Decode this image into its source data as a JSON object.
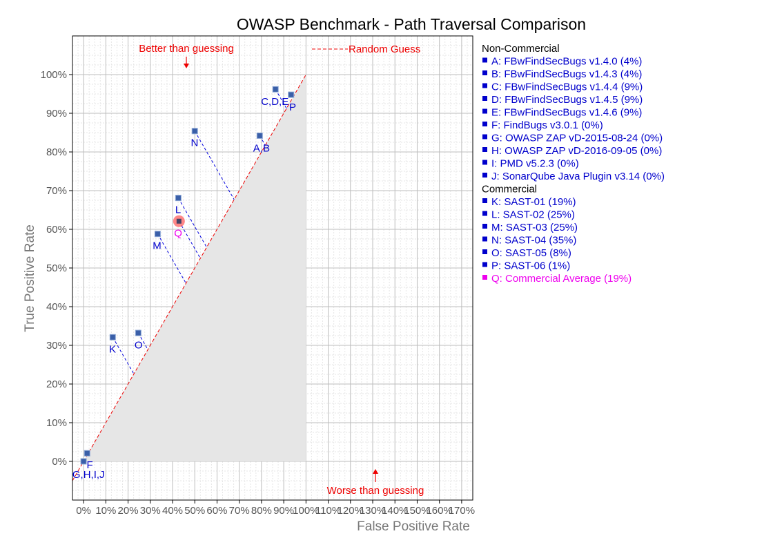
{
  "chart_data": {
    "type": "scatter",
    "title": "OWASP Benchmark - Path Traversal Comparison",
    "xlabel": "False Positive Rate",
    "ylabel": "True Positive Rate",
    "xlim": [
      -5,
      175
    ],
    "ylim": [
      -10,
      110
    ],
    "x_ticks": [
      "0%",
      "10%",
      "20%",
      "30%",
      "40%",
      "50%",
      "60%",
      "70%",
      "80%",
      "90%",
      "100%",
      "110%",
      "120%",
      "130%",
      "140%",
      "150%",
      "160%",
      "170%"
    ],
    "y_ticks": [
      "0%",
      "10%",
      "20%",
      "30%",
      "40%",
      "50%",
      "60%",
      "70%",
      "80%",
      "90%",
      "100%"
    ],
    "grid": true,
    "colors": {
      "point": "#3a5fa8",
      "label": "#0000cc",
      "average": "#ee00ee",
      "average_marker": "#ff6060",
      "guess_line": "#ee0000",
      "shade": "#e6e6e6",
      "grid_major": "#bdbdbd",
      "grid_minor": "#e6e6e6"
    },
    "annotations": {
      "better": "Better than guessing",
      "worse": "Worse than guessing",
      "random_guess": "Random Guess"
    },
    "points": [
      {
        "label": "A,B",
        "x": 79.2,
        "y": 84.2,
        "lx": 80,
        "ly": 81
      },
      {
        "label": "C,D,E",
        "x": 86.3,
        "y": 96.2,
        "lx": 86,
        "ly": 93
      },
      {
        "label": "F",
        "x": 1.6,
        "y": 2.1,
        "lx": 2.8,
        "ly": -0.9
      },
      {
        "label": "G,H,I,J",
        "x": 0,
        "y": 0,
        "lx": 2.2,
        "ly": -3.4
      },
      {
        "label": "K",
        "x": 13.1,
        "y": 32.1,
        "lx": 13,
        "ly": 29
      },
      {
        "label": "L",
        "x": 42.6,
        "y": 68.1,
        "lx": 42.5,
        "ly": 65.1
      },
      {
        "label": "M",
        "x": 33.3,
        "y": 58.8,
        "lx": 33,
        "ly": 55.8
      },
      {
        "label": "N",
        "x": 50,
        "y": 85.4,
        "lx": 49.9,
        "ly": 82.4
      },
      {
        "label": "O",
        "x": 24.6,
        "y": 33.2,
        "lx": 24.7,
        "ly": 30.1
      },
      {
        "label": "P",
        "x": 93.3,
        "y": 94.8,
        "lx": 94,
        "ly": 91.6
      }
    ],
    "average_point": {
      "label": "Q",
      "x": 42.9,
      "y": 62.1,
      "lx": 42.5,
      "ly": 59
    },
    "legend": {
      "position": "right",
      "groups": [
        {
          "title": "Non-Commercial",
          "entries": [
            {
              "text": "A: FBwFindSecBugs v1.4.0 (4%)"
            },
            {
              "text": "B: FBwFindSecBugs v1.4.3 (4%)"
            },
            {
              "text": "C: FBwFindSecBugs v1.4.4 (9%)"
            },
            {
              "text": "D: FBwFindSecBugs v1.4.5 (9%)"
            },
            {
              "text": "E: FBwFindSecBugs v1.4.6 (9%)"
            },
            {
              "text": "F: FindBugs v3.0.1 (0%)"
            },
            {
              "text": "G: OWASP ZAP vD-2015-08-24 (0%)"
            },
            {
              "text": "H: OWASP ZAP vD-2016-09-05 (0%)"
            },
            {
              "text": "I:  PMD v5.2.3 (0%)"
            },
            {
              "text": "J: SonarQube Java Plugin v3.14 (0%)"
            }
          ]
        },
        {
          "title": "Commercial",
          "entries": [
            {
              "text": "K: SAST-01 (19%)"
            },
            {
              "text": "L: SAST-02 (25%)"
            },
            {
              "text": "M: SAST-03 (25%)"
            },
            {
              "text": "N: SAST-04 (35%)"
            },
            {
              "text": "O: SAST-05 (8%)"
            },
            {
              "text": "P: SAST-06 (1%)"
            },
            {
              "text": "Q: Commercial Average (19%)",
              "average": true
            }
          ]
        }
      ]
    }
  }
}
